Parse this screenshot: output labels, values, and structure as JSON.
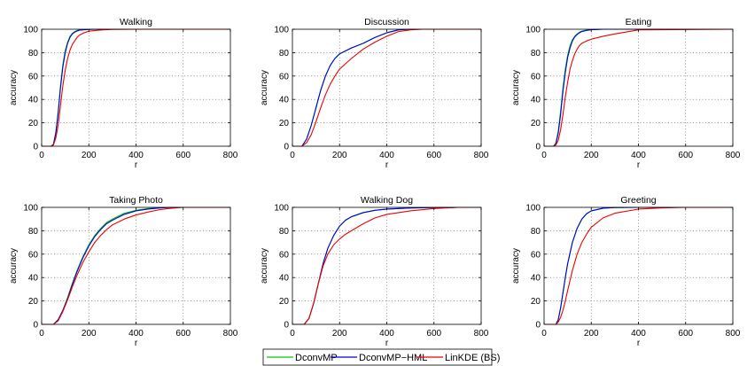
{
  "chart_data": [
    {
      "type": "line",
      "title": "Walking",
      "xlabel": "r",
      "ylabel": "accuracy",
      "xlim": [
        0,
        800
      ],
      "ylim": [
        0,
        100
      ],
      "xticks": [
        "0",
        "200",
        "400",
        "600",
        "800"
      ],
      "yticks": [
        "0",
        "20",
        "40",
        "60",
        "80",
        "100"
      ],
      "grid": true,
      "series": [
        {
          "name": "DconvMP",
          "color": "#00cc00",
          "x": [
            0,
            40,
            50,
            60,
            70,
            80,
            90,
            100,
            110,
            120,
            130,
            140,
            150,
            160,
            180,
            200,
            230,
            260,
            300,
            400,
            500,
            800
          ],
          "y": [
            0,
            0,
            2,
            12,
            30,
            52,
            70,
            82,
            89,
            94,
            96.5,
            98,
            99,
            99.4,
            99.7,
            99.9,
            100,
            100,
            100,
            100,
            100,
            100
          ]
        },
        {
          "name": "DconvMP−HML",
          "color": "#0000dd",
          "x": [
            0,
            40,
            50,
            60,
            70,
            80,
            90,
            100,
            110,
            120,
            130,
            140,
            150,
            160,
            180,
            200,
            230,
            260,
            300,
            400,
            500,
            800
          ],
          "y": [
            0,
            0,
            1.5,
            11,
            28,
            50,
            68,
            80,
            88,
            93,
            96,
            97.5,
            98.5,
            99.2,
            99.6,
            99.8,
            100,
            100,
            100,
            100,
            100,
            100
          ]
        },
        {
          "name": "LinKDE (BS)",
          "color": "#ee0000",
          "x": [
            0,
            40,
            50,
            60,
            70,
            80,
            90,
            100,
            110,
            120,
            130,
            140,
            150,
            160,
            180,
            200,
            230,
            260,
            300,
            400,
            500,
            800
          ],
          "y": [
            0,
            0,
            1,
            7,
            18,
            35,
            52,
            65,
            75,
            82,
            87,
            90,
            93,
            95,
            97,
            98.3,
            99,
            99.5,
            99.8,
            100,
            100,
            100
          ]
        }
      ]
    },
    {
      "type": "line",
      "title": "Discussion",
      "xlabel": "r",
      "ylabel": "accuracy",
      "xlim": [
        0,
        800
      ],
      "ylim": [
        0,
        100
      ],
      "xticks": [
        "0",
        "200",
        "400",
        "600",
        "800"
      ],
      "yticks": [
        "0",
        "20",
        "40",
        "60",
        "80",
        "100"
      ],
      "grid": true,
      "series": [
        {
          "name": "DconvMP",
          "color": "#00cc00",
          "x": [
            0,
            40,
            60,
            80,
            100,
            120,
            140,
            160,
            180,
            200,
            250,
            300,
            350,
            400,
            450,
            500,
            550,
            800
          ],
          "y": [
            0,
            0,
            6,
            18,
            33,
            48,
            60,
            69,
            75,
            79,
            84,
            88,
            93,
            97,
            99.5,
            100,
            100,
            100
          ]
        },
        {
          "name": "DconvMP−HML",
          "color": "#0000dd",
          "x": [
            0,
            40,
            60,
            80,
            100,
            120,
            140,
            160,
            180,
            200,
            250,
            300,
            350,
            400,
            450,
            500,
            550,
            800
          ],
          "y": [
            0,
            0,
            6,
            18,
            33,
            48,
            60,
            69,
            75,
            79,
            84,
            88,
            93,
            97,
            99.5,
            100,
            100,
            100
          ]
        },
        {
          "name": "LinKDE (BS)",
          "color": "#ee0000",
          "x": [
            0,
            40,
            60,
            80,
            100,
            120,
            140,
            160,
            180,
            200,
            250,
            300,
            350,
            400,
            450,
            500,
            550,
            800
          ],
          "y": [
            0,
            0,
            3,
            10,
            21,
            33,
            44,
            53,
            60,
            66,
            75,
            83,
            89,
            94,
            98,
            99.5,
            100,
            100
          ]
        }
      ]
    },
    {
      "type": "line",
      "title": "Eating",
      "xlabel": "r",
      "ylabel": "accuracy",
      "xlim": [
        0,
        800
      ],
      "ylim": [
        0,
        100
      ],
      "xticks": [
        "0",
        "200",
        "400",
        "600",
        "800"
      ],
      "yticks": [
        "0",
        "20",
        "40",
        "60",
        "80",
        "100"
      ],
      "grid": true,
      "series": [
        {
          "name": "DconvMP",
          "color": "#00cc00",
          "x": [
            0,
            40,
            50,
            60,
            70,
            80,
            90,
            100,
            110,
            120,
            130,
            140,
            150,
            160,
            180,
            200,
            250,
            300,
            400,
            800
          ],
          "y": [
            0,
            0,
            3,
            13,
            30,
            50,
            66,
            78,
            86,
            91,
            94,
            96,
            97.5,
            98.5,
            99.3,
            99.7,
            100,
            100,
            100,
            100
          ]
        },
        {
          "name": "DconvMP−HML",
          "color": "#0000dd",
          "x": [
            0,
            40,
            50,
            60,
            70,
            80,
            90,
            100,
            110,
            120,
            130,
            140,
            150,
            160,
            180,
            200,
            250,
            300,
            400,
            800
          ],
          "y": [
            0,
            0,
            2,
            11,
            27,
            47,
            63,
            76,
            84,
            90,
            93.5,
            95.5,
            97,
            98,
            99,
            99.6,
            100,
            100,
            100,
            100
          ]
        },
        {
          "name": "LinKDE (BS)",
          "color": "#ee0000",
          "x": [
            0,
            40,
            50,
            60,
            70,
            80,
            90,
            100,
            110,
            120,
            130,
            140,
            150,
            160,
            180,
            200,
            250,
            300,
            400,
            800
          ],
          "y": [
            0,
            0,
            1,
            5,
            14,
            27,
            42,
            55,
            66,
            73,
            79,
            83,
            86,
            88,
            90,
            91.5,
            94,
            96,
            99.5,
            100
          ]
        }
      ]
    },
    {
      "type": "line",
      "title": "Taking Photo",
      "xlabel": "r",
      "ylabel": "accuracy",
      "xlim": [
        0,
        800
      ],
      "ylim": [
        0,
        100
      ],
      "xticks": [
        "0",
        "200",
        "400",
        "600",
        "800"
      ],
      "yticks": [
        "0",
        "20",
        "40",
        "60",
        "80",
        "100"
      ],
      "grid": true,
      "series": [
        {
          "name": "DconvMP",
          "color": "#00cc00",
          "x": [
            0,
            50,
            70,
            90,
            110,
            130,
            150,
            175,
            200,
            225,
            250,
            275,
            300,
            350,
            400,
            450,
            500,
            550,
            600,
            800
          ],
          "y": [
            0,
            0,
            4,
            12,
            23,
            35,
            46,
            58,
            68,
            76,
            82,
            87,
            90,
            95,
            97.5,
            99,
            99.6,
            100,
            100,
            100
          ]
        },
        {
          "name": "DconvMP−HML",
          "color": "#0000dd",
          "x": [
            0,
            50,
            70,
            90,
            110,
            130,
            150,
            175,
            200,
            225,
            250,
            275,
            300,
            350,
            400,
            450,
            500,
            550,
            600,
            800
          ],
          "y": [
            0,
            0,
            4,
            12,
            22,
            34,
            45,
            57,
            67,
            75,
            81,
            86,
            89,
            94,
            97,
            98.5,
            99.5,
            100,
            100,
            100
          ]
        },
        {
          "name": "LinKDE (BS)",
          "color": "#ee0000",
          "x": [
            0,
            50,
            70,
            90,
            110,
            130,
            150,
            175,
            200,
            225,
            250,
            275,
            300,
            350,
            400,
            450,
            500,
            550,
            600,
            800
          ],
          "y": [
            0,
            0,
            3,
            11,
            21,
            32,
            42,
            53,
            62,
            70,
            76,
            81,
            85,
            90,
            93.5,
            96,
            98,
            99.3,
            100,
            100
          ]
        }
      ]
    },
    {
      "type": "line",
      "title": "Walking Dog",
      "xlabel": "r",
      "ylabel": "accuracy",
      "xlim": [
        0,
        800
      ],
      "ylim": [
        0,
        100
      ],
      "xticks": [
        "0",
        "200",
        "400",
        "600",
        "800"
      ],
      "yticks": [
        "0",
        "20",
        "40",
        "60",
        "80",
        "100"
      ],
      "grid": true,
      "series": [
        {
          "name": "DconvMP",
          "color": "#00cc00",
          "x": [
            0,
            50,
            70,
            90,
            110,
            130,
            150,
            175,
            200,
            225,
            250,
            300,
            350,
            400,
            500,
            600,
            700,
            800
          ],
          "y": [
            0,
            0,
            5,
            18,
            35,
            52,
            65,
            76,
            84,
            89,
            92,
            95.5,
            97.5,
            98.5,
            99.5,
            99.8,
            100,
            100
          ]
        },
        {
          "name": "DconvMP−HML",
          "color": "#0000dd",
          "x": [
            0,
            50,
            70,
            90,
            110,
            130,
            150,
            175,
            200,
            225,
            250,
            300,
            350,
            400,
            500,
            600,
            700,
            800
          ],
          "y": [
            0,
            0,
            5,
            18,
            35,
            52,
            65,
            76,
            84,
            89,
            92,
            95.5,
            97.5,
            98.5,
            99.5,
            99.8,
            100,
            100
          ]
        },
        {
          "name": "LinKDE (BS)",
          "color": "#ee0000",
          "x": [
            0,
            50,
            70,
            90,
            110,
            130,
            150,
            175,
            200,
            225,
            250,
            300,
            350,
            400,
            500,
            600,
            700,
            800
          ],
          "y": [
            0,
            0,
            5,
            18,
            35,
            50,
            60,
            68,
            73,
            77,
            80,
            86,
            91,
            94,
            97,
            99,
            100,
            100
          ]
        }
      ]
    },
    {
      "type": "line",
      "title": "Greeting",
      "xlabel": "r",
      "ylabel": "accuracy",
      "xlim": [
        0,
        800
      ],
      "ylim": [
        0,
        100
      ],
      "xticks": [
        "0",
        "200",
        "400",
        "600",
        "800"
      ],
      "yticks": [
        "0",
        "20",
        "40",
        "60",
        "80",
        "100"
      ],
      "grid": true,
      "series": [
        {
          "name": "DconvMP",
          "color": "#00cc00",
          "x": [
            0,
            50,
            60,
            70,
            80,
            90,
            100,
            120,
            140,
            160,
            180,
            200,
            250,
            300,
            400,
            800
          ],
          "y": [
            0,
            0,
            4,
            14,
            27,
            40,
            52,
            70,
            82,
            90,
            94.5,
            97,
            99.3,
            99.8,
            100,
            100
          ]
        },
        {
          "name": "DconvMP−HML",
          "color": "#0000dd",
          "x": [
            0,
            50,
            60,
            70,
            80,
            90,
            100,
            120,
            140,
            160,
            180,
            200,
            250,
            300,
            400,
            800
          ],
          "y": [
            0,
            0,
            4,
            14,
            27,
            40,
            52,
            70,
            82,
            90,
            94.5,
            97,
            99.3,
            99.8,
            100,
            100
          ]
        },
        {
          "name": "LinKDE (BS)",
          "color": "#ee0000",
          "x": [
            0,
            50,
            60,
            70,
            80,
            90,
            100,
            120,
            140,
            160,
            180,
            200,
            250,
            300,
            400,
            500,
            600,
            800
          ],
          "y": [
            0,
            0,
            2,
            6,
            12,
            20,
            29,
            46,
            60,
            70,
            77,
            83,
            91,
            95,
            98.5,
            99.6,
            100,
            100
          ]
        }
      ]
    }
  ],
  "legend": {
    "entries": [
      {
        "label": "DconvMP",
        "color": "#00cc00"
      },
      {
        "label": "DconvMP−HML",
        "color": "#0000dd"
      },
      {
        "label": "LinKDE (BS)",
        "color": "#ee0000"
      }
    ],
    "placement": "bottom-center"
  }
}
